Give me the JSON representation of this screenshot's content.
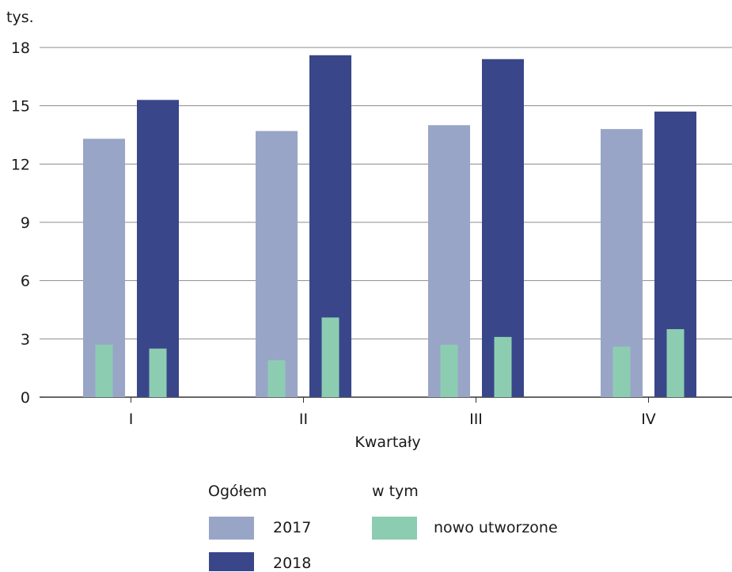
{
  "chart_data": {
    "type": "bar",
    "unit_label": "tys.",
    "xlabel": "Kwartały",
    "categories": [
      "I",
      "II",
      "III",
      "IV"
    ],
    "ylim": [
      0,
      18
    ],
    "yticks": [
      0,
      3,
      6,
      9,
      12,
      15,
      18
    ],
    "grid": true,
    "series": [
      {
        "name": "2017",
        "group": "Ogółem",
        "color": "#99a5c7",
        "values": [
          13.3,
          13.7,
          14.0,
          13.8
        ]
      },
      {
        "name": "2018",
        "group": "Ogółem",
        "color": "#3a468a",
        "values": [
          15.3,
          17.6,
          17.4,
          14.7
        ]
      }
    ],
    "overlay_series": {
      "name": "nowo utworzone",
      "group": "w tym",
      "color": "#8ccdb2",
      "values_2017": [
        2.7,
        1.9,
        2.7,
        2.6
      ],
      "values_2018": [
        2.5,
        4.1,
        3.1,
        3.5
      ]
    }
  },
  "legend": {
    "group_total": "Ogółem",
    "group_sub": "w tym",
    "item_2017": "2017",
    "item_2018": "2018",
    "item_new": "nowo utworzone"
  }
}
